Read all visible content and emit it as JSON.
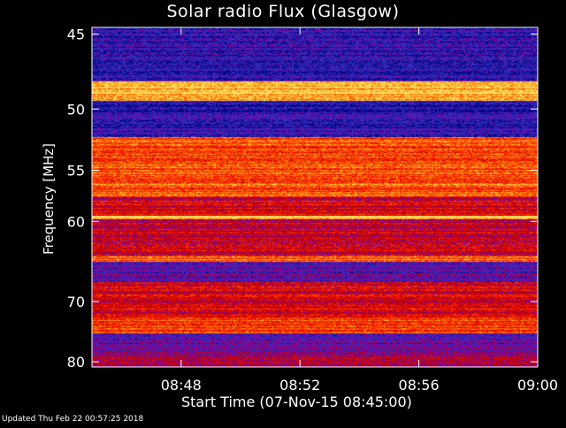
{
  "chart_data": {
    "type": "heatmap",
    "title": "Solar radio Flux (Glasgow)",
    "xlabel": "Start Time (07-Nov-15 08:45:00)",
    "ylabel": "Frequency [MHz]",
    "x_tick_labels": [
      "08:48",
      "08:52",
      "08:56",
      "09:00"
    ],
    "x_ticks_minutes": [
      3,
      7,
      11,
      15
    ],
    "x_range_minutes": [
      0,
      15
    ],
    "y_tick_labels": [
      "45",
      "50",
      "55",
      "60",
      "70",
      "80"
    ],
    "y_ticks": [
      45,
      50,
      55,
      60,
      70,
      80
    ],
    "y_range": [
      44.6,
      81.0
    ],
    "y_scale": "reciprocal",
    "colormap": [
      "#000080",
      "#3030c0",
      "#8000a0",
      "#c00000",
      "#ff2000",
      "#ff8000",
      "#ffe060"
    ],
    "bands": [
      {
        "from": 44.6,
        "to": 48.0,
        "level": 0.15
      },
      {
        "from": 48.0,
        "to": 49.4,
        "level": 0.95
      },
      {
        "from": 49.4,
        "to": 52.2,
        "level": 0.12
      },
      {
        "from": 52.2,
        "to": 57.5,
        "level": 0.75
      },
      {
        "from": 57.5,
        "to": 59.4,
        "level": 0.55
      },
      {
        "from": 59.4,
        "to": 59.8,
        "level": 0.95
      },
      {
        "from": 59.8,
        "to": 64.0,
        "level": 0.5
      },
      {
        "from": 64.0,
        "to": 64.6,
        "level": 0.8
      },
      {
        "from": 64.6,
        "to": 67.3,
        "level": 0.25
      },
      {
        "from": 67.3,
        "to": 69.4,
        "level": 0.55
      },
      {
        "from": 69.4,
        "to": 72.2,
        "level": 0.55
      },
      {
        "from": 72.2,
        "to": 75.0,
        "level": 0.7
      },
      {
        "from": 75.0,
        "to": 78.0,
        "level": 0.25
      },
      {
        "from": 78.0,
        "to": 81.0,
        "level": 0.4
      }
    ]
  },
  "footer": {
    "updated": "Updated Thu Feb 22 00:57:25 2018"
  }
}
